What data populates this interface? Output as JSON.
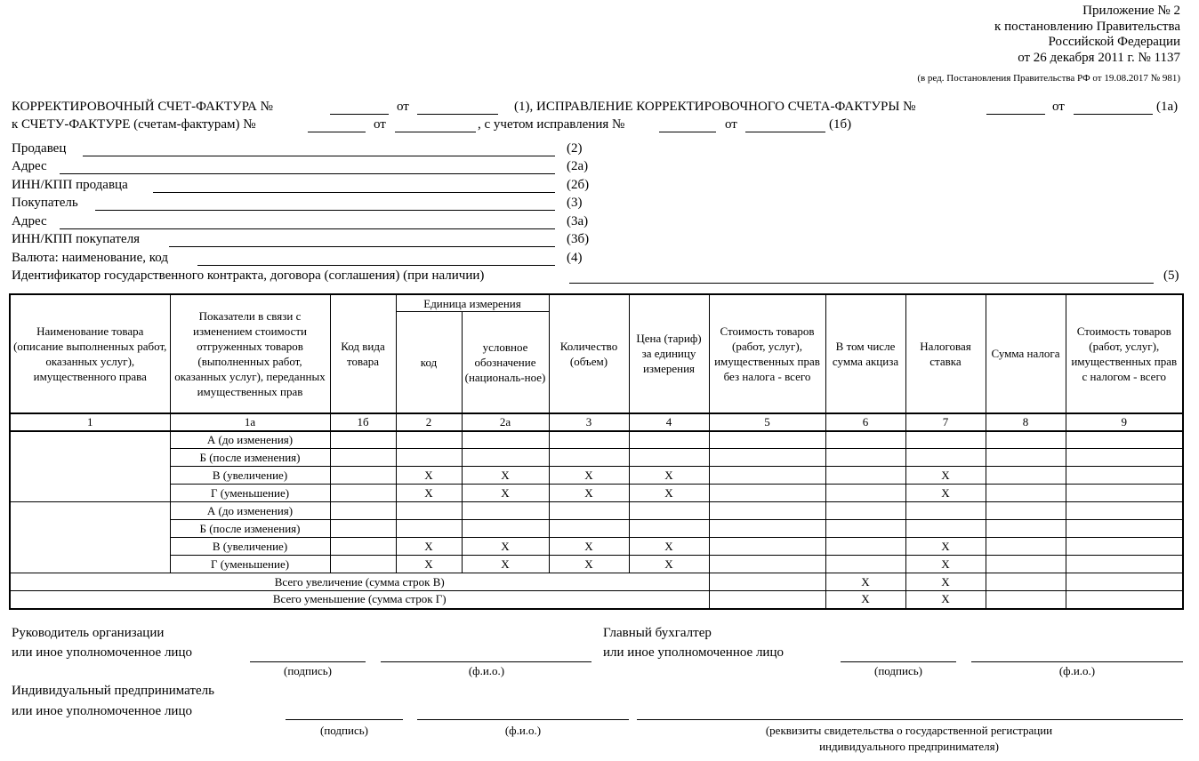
{
  "appendix": {
    "lines": [
      "Приложение № 2",
      "к постановлению Правительства",
      "Российской Федерации",
      "от 26 декабря 2011 г. № 1137"
    ],
    "note": "(в ред. Постановления Правительства РФ от 19.08.2017 № 981)"
  },
  "title_line1": {
    "label": "КОРРЕКТИРОВОЧНЫЙ СЧЕТ-ФАКТУРА  №",
    "from": "от",
    "mid": "(1), ИСПРАВЛЕНИЕ КОРРЕКТИРОВОЧНОГО СЧЕТА-ФАКТУРЫ  №",
    "from2": "от",
    "code": "(1а)"
  },
  "title_line2": {
    "label": "к СЧЕТУ-ФАКТУРЕ (счетам-фактурам)  №",
    "from": "от",
    "mid": ", с учетом исправления  №",
    "from2": "от",
    "code": "(1б)"
  },
  "fields": [
    {
      "label": "Продавец",
      "code": "(2)"
    },
    {
      "label": "Адрес",
      "code": "(2а)"
    },
    {
      "label": "ИНН/КПП продавца",
      "code": "(2б)"
    },
    {
      "label": "Покупатель",
      "code": "(3)"
    },
    {
      "label": "Адрес",
      "code": "(3а)"
    },
    {
      "label": "ИНН/КПП покупателя",
      "code": "(3б)"
    },
    {
      "label": "Валюта: наименование, код",
      "code": "(4)"
    }
  ],
  "contract_field": {
    "label": "Идентификатор государственного контракта, договора (соглашения) (при наличии)",
    "code": "(5)"
  },
  "table": {
    "headers": {
      "c1": "Наименование товара (описание выполненных работ, оказанных услуг), имущественного права",
      "c1a": "Показатели в связи с изменением стоимости отгруженных товаров (выполненных работ, оказанных услуг), переданных имущественных прав",
      "c1b": "Код вида товара",
      "unit": "Единица измерения",
      "c2": "код",
      "c2a": "условное обозначение (националь-ное)",
      "c3": "Количество (объем)",
      "c4": "Цена (тариф) за единицу измерения",
      "c5": "Стоимость товаров (работ, услуг), имущественных прав без налога - всего",
      "c6": "В том числе сумма акциза",
      "c7": "Налоговая ставка",
      "c8": "Сумма налога",
      "c9": "Стоимость товаров (работ, услуг), имущественных прав с налогом - всего"
    },
    "column_numbers": [
      "1",
      "1а",
      "1б",
      "2",
      "2а",
      "3",
      "4",
      "5",
      "6",
      "7",
      "8",
      "9"
    ],
    "row_labels": [
      "А (до изменения)",
      "Б (после изменения)",
      "В (увеличение)",
      "Г (уменьшение)"
    ],
    "x_mark": "X",
    "total_increase": "Всего увеличение (сумма строк В)",
    "total_decrease": "Всего уменьшение (сумма строк Г)"
  },
  "signatures": {
    "head_l1": "Руководитель организации",
    "head_l2": "или иное уполномоченное лицо",
    "acc_l1": "Главный бухгалтер",
    "acc_l2": "или иное уполномоченное лицо",
    "ip_l1": "Индивидуальный предприниматель",
    "ip_l2": "или иное уполномоченное лицо",
    "sign": "(подпись)",
    "fio": "(ф.и.о.)",
    "reg_l1": "(реквизиты свидетельства о государственной регистрации",
    "reg_l2": "индивидуального предпринимателя)"
  }
}
